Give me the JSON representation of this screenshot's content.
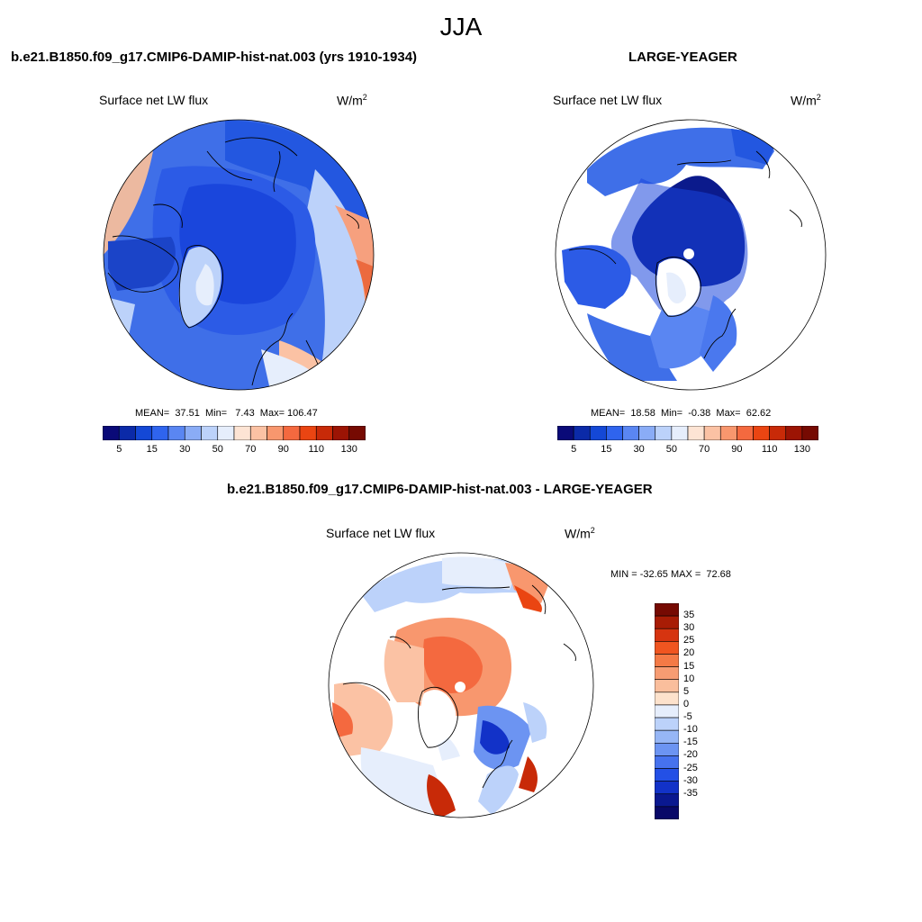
{
  "figure": {
    "season": "JJA"
  },
  "panel_left": {
    "title": "b.e21.B1850.f09_g17.CMIP6-DAMIP-hist-nat.003 (yrs 1910-1934)",
    "variable": "Surface net LW flux",
    "units_base": "W/m",
    "units_exp": "2",
    "stats": "MEAN=  37.51  Min=   7.43  Max= 106.47"
  },
  "panel_right": {
    "title": "LARGE-YEAGER",
    "variable": "Surface net LW flux",
    "units_base": "W/m",
    "units_exp": "2",
    "stats": "MEAN=  18.58  Min=  -0.38  Max=  62.62"
  },
  "panel_diff": {
    "title": "b.e21.B1850.f09_g17.CMIP6-DAMIP-hist-nat.003 - LARGE-YEAGER",
    "variable": "Surface net LW flux",
    "units_base": "W/m",
    "units_exp": "2",
    "minmax": "MIN = -32.65 MAX =  72.68"
  },
  "colorbar_main": {
    "colors": [
      "#0a0a78",
      "#0b2aa8",
      "#1448d6",
      "#2f64ee",
      "#5a86f2",
      "#8aacf6",
      "#bcd2fa",
      "#e6eefc",
      "#fde4d4",
      "#fbc2a4",
      "#f8976e",
      "#f4693f",
      "#ea4512",
      "#c82a08",
      "#9c1404",
      "#760a02"
    ],
    "tick_labels": [
      "5",
      "15",
      "30",
      "50",
      "70",
      "90",
      "110",
      "130"
    ]
  },
  "colorbar_diff": {
    "colors": [
      "#760a02",
      "#a81c05",
      "#d63410",
      "#f05520",
      "#f47a46",
      "#f79c72",
      "#fabe9c",
      "#fde2cc",
      "#e6eefc",
      "#bcd2fa",
      "#96b6f6",
      "#6c94f2",
      "#4672ee",
      "#2350e6",
      "#1232c8",
      "#0a1890",
      "#080868"
    ],
    "tick_labels": [
      "35",
      "30",
      "25",
      "20",
      "15",
      "10",
      "5",
      "0",
      "-5",
      "-10",
      "-15",
      "-20",
      "-25",
      "-30",
      "-35"
    ]
  },
  "colors": {
    "land_outline": "#000000",
    "no_data": "#ffffff"
  }
}
